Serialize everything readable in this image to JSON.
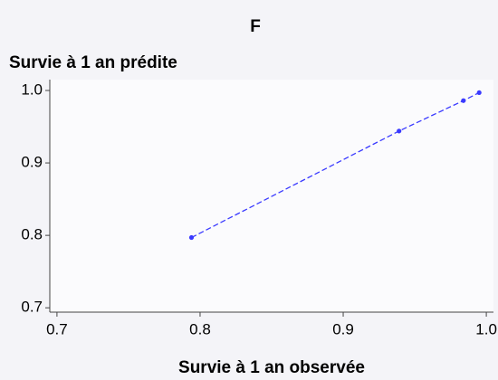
{
  "chart_data": {
    "type": "line",
    "title": "F",
    "y_label": "Survie à 1 an prédite",
    "x_label": "Survie à 1 an observée",
    "x": [
      0.794,
      0.939,
      0.984,
      0.995
    ],
    "values": [
      0.797,
      0.944,
      0.986,
      0.997
    ],
    "color": "#3a3aff",
    "linestyle": "dashed",
    "markers": true,
    "xlim": [
      0.695,
      1.005
    ],
    "ylim": [
      0.694,
      1.015
    ],
    "xticks": [
      0.7,
      0.8,
      0.9,
      {
        "value": 1,
        "label": "1.0"
      }
    ],
    "yticks": [
      0.7,
      0.8,
      0.9,
      {
        "value": 1,
        "label": "1.0"
      }
    ],
    "grid": false
  }
}
